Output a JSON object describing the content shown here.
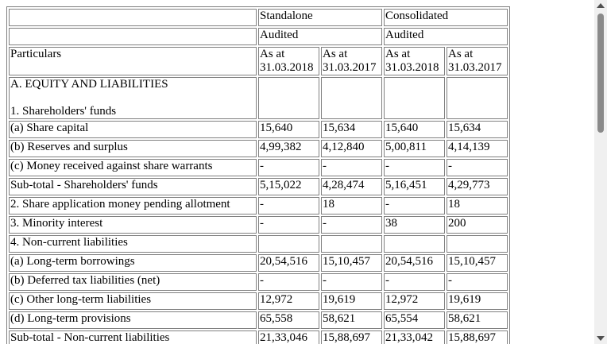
{
  "header": {
    "standalone": "Standalone",
    "consolidated": "Consolidated",
    "audited_1": "Audited",
    "audited_2": "Audited",
    "particulars": "Particulars",
    "cols": [
      {
        "line1": "As at",
        "line2": "31.03.2018"
      },
      {
        "line1": "As at",
        "line2": "31.03.2017"
      },
      {
        "line1": "As at",
        "line2": "31.03.2018"
      },
      {
        "line1": "As at",
        "line2": "31.03.2017"
      }
    ]
  },
  "section": {
    "title": "A. EQUITY AND LIABILITIES",
    "subtitle": "1. Shareholders' funds"
  },
  "rows": [
    {
      "label": "(a) Share capital",
      "values": [
        "15,640",
        "15,634",
        "15,640",
        "15,634"
      ]
    },
    {
      "label": "(b) Reserves and surplus",
      "values": [
        "4,99,382",
        "4,12,840",
        "5,00,811",
        "4,14,139"
      ]
    },
    {
      "label": "(c) Money received against share warrants",
      "values": [
        "-",
        "-",
        "-",
        "-"
      ]
    },
    {
      "label": "Sub-total - Shareholders' funds",
      "values": [
        "5,15,022",
        "4,28,474",
        "5,16,451",
        "4,29,773"
      ]
    },
    {
      "label": "2. Share application money pending allotment",
      "values": [
        "-",
        "18",
        "-",
        "18"
      ]
    },
    {
      "label": "3. Minority interest",
      "values": [
        "-",
        "-",
        "38",
        "200"
      ]
    },
    {
      "label": "4. Non-current liabilities",
      "values": [
        "",
        "",
        "",
        ""
      ]
    },
    {
      "label": "(a) Long-term borrowings",
      "values": [
        "20,54,516",
        "15,10,457",
        "20,54,516",
        "15,10,457"
      ]
    },
    {
      "label": "(b) Deferred tax liabilities (net)",
      "values": [
        "-",
        "-",
        "-",
        "-"
      ]
    },
    {
      "label": "(c) Other long-term liabilities",
      "values": [
        "12,972",
        "19,619",
        "12,972",
        "19,619"
      ]
    },
    {
      "label": "(d) Long-term provisions",
      "values": [
        "65,558",
        "58,621",
        "65,554",
        "58,621"
      ]
    },
    {
      "label": "Sub-total - Non-current liabilities",
      "values": [
        "21,33,046",
        "15,88,697",
        "21,33,042",
        "15,88,697"
      ]
    }
  ]
}
